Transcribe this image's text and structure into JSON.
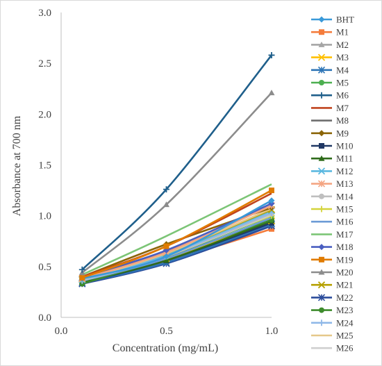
{
  "chart_data": {
    "type": "line",
    "title": "",
    "xlabel": "Concentration (mg/mL)",
    "ylabel": "Absorbance at 700 nm",
    "xlim": [
      0.0,
      1.0
    ],
    "ylim": [
      0.0,
      3.0
    ],
    "x_ticks": [
      "0.0",
      "0.5",
      "1.0"
    ],
    "y_ticks": [
      "0.0",
      "0.5",
      "1.0",
      "1.5",
      "2.0",
      "2.5",
      "3.0"
    ],
    "x": [
      0.1,
      0.5,
      1.0
    ],
    "grid": false,
    "legend_position": "right",
    "series": [
      {
        "name": "BHT",
        "values": [
          0.38,
          0.6,
          1.15
        ],
        "color": "#3a9ad9",
        "marker": "diamond"
      },
      {
        "name": "M1",
        "values": [
          0.35,
          0.55,
          0.87
        ],
        "color": "#f47c3c",
        "marker": "square"
      },
      {
        "name": "M2",
        "values": [
          0.36,
          0.57,
          0.9
        ],
        "color": "#a5a5a5",
        "marker": "triangle"
      },
      {
        "name": "M3",
        "values": [
          0.37,
          0.58,
          0.95
        ],
        "color": "#ffc000",
        "marker": "x"
      },
      {
        "name": "M4",
        "values": [
          0.34,
          0.54,
          0.92
        ],
        "color": "#2e75b6",
        "marker": "star"
      },
      {
        "name": "M5",
        "values": [
          0.38,
          0.6,
          1.0
        ],
        "color": "#4caf50",
        "marker": "circle"
      },
      {
        "name": "M6",
        "values": [
          0.47,
          1.26,
          2.58
        ],
        "color": "#1f5f8b",
        "marker": "plus"
      },
      {
        "name": "M7",
        "values": [
          0.4,
          0.7,
          1.22
        ],
        "color": "#c0441e",
        "marker": "none"
      },
      {
        "name": "M8",
        "values": [
          0.38,
          0.65,
          1.05
        ],
        "color": "#6e6e6e",
        "marker": "none"
      },
      {
        "name": "M9",
        "values": [
          0.4,
          0.72,
          1.08
        ],
        "color": "#8b6508",
        "marker": "diamond"
      },
      {
        "name": "M10",
        "values": [
          0.34,
          0.56,
          0.93
        ],
        "color": "#203864",
        "marker": "square"
      },
      {
        "name": "M11",
        "values": [
          0.35,
          0.56,
          0.95
        ],
        "color": "#2e6b1a",
        "marker": "triangle"
      },
      {
        "name": "M12",
        "values": [
          0.37,
          0.62,
          1.05
        ],
        "color": "#5bb8e0",
        "marker": "x"
      },
      {
        "name": "M13",
        "values": [
          0.38,
          0.64,
          1.1
        ],
        "color": "#f4a582",
        "marker": "star"
      },
      {
        "name": "M14",
        "values": [
          0.37,
          0.6,
          1.02
        ],
        "color": "#bfbfbf",
        "marker": "circle"
      },
      {
        "name": "M15",
        "values": [
          0.39,
          0.62,
          1.0
        ],
        "color": "#d4d43a",
        "marker": "plus"
      },
      {
        "name": "M16",
        "values": [
          0.36,
          0.58,
          0.98
        ],
        "color": "#6c9bd6",
        "marker": "none"
      },
      {
        "name": "M17",
        "values": [
          0.42,
          0.8,
          1.31
        ],
        "color": "#7cc576",
        "marker": "none"
      },
      {
        "name": "M18",
        "values": [
          0.4,
          0.66,
          1.12
        ],
        "color": "#4a5fc1",
        "marker": "diamond"
      },
      {
        "name": "M19",
        "values": [
          0.39,
          0.7,
          1.25
        ],
        "color": "#e07b00",
        "marker": "square"
      },
      {
        "name": "M20",
        "values": [
          0.44,
          1.11,
          2.21
        ],
        "color": "#8c8c8c",
        "marker": "triangle"
      },
      {
        "name": "M21",
        "values": [
          0.38,
          0.63,
          1.06
        ],
        "color": "#b5a000",
        "marker": "x"
      },
      {
        "name": "M22",
        "values": [
          0.33,
          0.53,
          0.9
        ],
        "color": "#2b4c9b",
        "marker": "star"
      },
      {
        "name": "M23",
        "values": [
          0.33,
          0.59,
          0.96
        ],
        "color": "#3d8b2c",
        "marker": "circle"
      },
      {
        "name": "M24",
        "values": [
          0.36,
          0.61,
          1.03
        ],
        "color": "#8fb8e8",
        "marker": "plus"
      },
      {
        "name": "M25",
        "values": [
          0.37,
          0.63,
          1.07
        ],
        "color": "#e5c88a",
        "marker": "none"
      },
      {
        "name": "M26",
        "values": [
          0.36,
          0.6,
          1.01
        ],
        "color": "#cfcfcf",
        "marker": "none"
      }
    ]
  }
}
